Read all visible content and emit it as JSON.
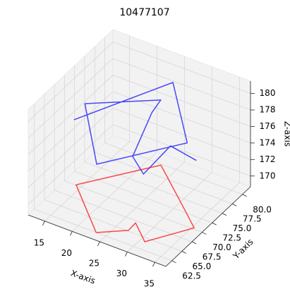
{
  "chart_data": {
    "type": "line3d",
    "title": "10477107",
    "xlabel": "X-axis",
    "ylabel": "Y-axis",
    "zlabel": "Z-axis",
    "xlim": [
      12,
      37
    ],
    "ylim": [
      61,
      82
    ],
    "zlim": [
      168.7,
      181.5
    ],
    "xticks": [
      15,
      20,
      25,
      30,
      35
    ],
    "yticks": [
      {
        "value": 62.5,
        "label": "62.5"
      },
      {
        "value": 65,
        "label": "65.0"
      },
      {
        "value": 67.5,
        "label": "67.5"
      },
      {
        "value": 70,
        "label": "70.0"
      },
      {
        "value": 72.5,
        "label": "72.5"
      },
      {
        "value": 75,
        "label": "75.0"
      },
      {
        "value": 77.5,
        "label": "77.5"
      },
      {
        "value": 80,
        "label": "80.0"
      }
    ],
    "zticks": [
      170,
      172,
      174,
      176,
      178,
      180
    ],
    "grid": true,
    "series": [
      {
        "color": "#0000ff",
        "x": [
          15.4,
          25.4,
          29.9,
          18.8,
          14.6,
          25.1,
          23.4,
          22.4,
          25.1,
          27.0,
          30.1
        ],
        "y": [
          67.7,
          78.6,
          76.0,
          68.7,
          71.5,
          76.0,
          76.1,
          72.7,
          71.7,
          75.8,
          78.0
        ],
        "z": [
          178,
          180,
          175,
          173,
          178,
          179,
          177,
          173,
          172,
          174,
          172
        ]
      },
      {
        "color": "#ff0000",
        "x": [
          23.6,
          14.4,
          22.7,
          31.9,
          35.7,
          31.2,
          27.4,
          27.5,
          23.6
        ],
        "y": [
          62.0,
          69.6,
          79.3,
          72.6,
          69.8,
          63.7,
          66.6,
          64.7,
          62.0
        ],
        "z": [
          169,
          169,
          169,
          169,
          169,
          169,
          169,
          169,
          169
        ]
      }
    ]
  }
}
